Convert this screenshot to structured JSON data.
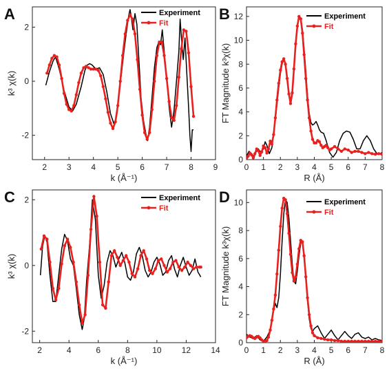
{
  "colors": {
    "experiment": "#000000",
    "fit": "#e8201e"
  },
  "chart_data": [
    {
      "id": "A",
      "letter": "A",
      "type": "line",
      "xlabel": "k (Å⁻¹)",
      "ylabel": "k³ χ(k)",
      "xlim": [
        1.5,
        9
      ],
      "ylim": [
        -2.9,
        2.75
      ],
      "xticks": [
        2,
        3,
        4,
        5,
        6,
        7,
        8,
        9
      ],
      "yticks": [
        -2,
        0,
        2
      ],
      "legend": [
        "Experiment",
        "Fit"
      ],
      "legend_position": "top-right",
      "series": [
        {
          "name": "Experiment",
          "style": "line",
          "x": [
            2.05,
            2.2,
            2.35,
            2.45,
            2.6,
            2.8,
            3.0,
            3.15,
            3.3,
            3.5,
            3.65,
            3.75,
            3.85,
            3.95,
            4.1,
            4.25,
            4.4,
            4.55,
            4.7,
            4.85,
            4.95,
            5.05,
            5.15,
            5.25,
            5.35,
            5.45,
            5.5,
            5.55,
            5.62,
            5.7,
            5.78,
            5.85,
            5.95,
            6.05,
            6.15,
            6.22,
            6.3,
            6.4,
            6.5,
            6.6,
            6.68,
            6.75,
            6.82,
            6.9,
            7.0,
            7.1,
            7.2,
            7.3,
            7.4,
            7.5,
            7.55,
            7.62,
            7.68,
            7.75,
            7.82,
            7.9,
            7.95,
            8.0,
            8.05,
            8.1
          ],
          "y": [
            -0.15,
            0.35,
            0.75,
            0.9,
            0.45,
            -0.35,
            -0.95,
            -1.1,
            -0.85,
            -0.2,
            0.4,
            0.6,
            0.65,
            0.6,
            0.45,
            0.5,
            0.25,
            -0.4,
            -1.2,
            -1.6,
            -1.3,
            -0.5,
            0.3,
            1.1,
            1.8,
            2.45,
            2.65,
            2.4,
            1.9,
            2.5,
            2.1,
            1.0,
            -0.6,
            -1.45,
            -1.95,
            -2.2,
            -1.7,
            -0.6,
            0.5,
            1.25,
            1.45,
            1.35,
            1.9,
            1.1,
            0.1,
            -0.95,
            -1.7,
            -1.1,
            0.0,
            1.1,
            2.3,
            1.4,
            0.8,
            1.6,
            0.4,
            -1.0,
            -2.0,
            -2.6,
            -1.8,
            -1.8
          ]
        },
        {
          "name": "Fit",
          "style": "line-dots",
          "x": [
            2.1,
            2.2,
            2.3,
            2.4,
            2.5,
            2.6,
            2.7,
            2.8,
            2.9,
            3.0,
            3.1,
            3.2,
            3.3,
            3.4,
            3.5,
            3.6,
            3.7,
            3.8,
            3.9,
            4.0,
            4.1,
            4.2,
            4.3,
            4.4,
            4.5,
            4.6,
            4.7,
            4.8,
            4.9,
            5.0,
            5.1,
            5.2,
            5.3,
            5.4,
            5.5,
            5.6,
            5.7,
            5.8,
            5.9,
            6.0,
            6.1,
            6.2,
            6.3,
            6.4,
            6.5,
            6.6,
            6.7,
            6.8,
            6.9,
            7.0,
            7.1,
            7.2,
            7.3,
            7.4,
            7.5,
            7.6,
            7.7,
            7.8,
            7.9,
            8.0,
            8.1
          ],
          "y": [
            0.3,
            0.6,
            0.85,
            0.95,
            0.9,
            0.6,
            0.1,
            -0.45,
            -0.85,
            -1.05,
            -1.1,
            -0.9,
            -0.5,
            -0.05,
            0.3,
            0.5,
            0.55,
            0.5,
            0.45,
            0.45,
            0.45,
            0.4,
            0.2,
            -0.2,
            -0.65,
            -1.15,
            -1.55,
            -1.75,
            -1.5,
            -0.9,
            0.0,
            0.95,
            1.75,
            2.25,
            2.45,
            2.3,
            1.75,
            0.8,
            -0.3,
            -1.25,
            -1.9,
            -2.15,
            -1.9,
            -1.05,
            0.0,
            0.95,
            1.45,
            1.45,
            0.95,
            0.1,
            -0.75,
            -1.35,
            -1.45,
            -0.9,
            0.15,
            1.2,
            1.9,
            1.85,
            1.05,
            -0.2,
            -1.3
          ]
        }
      ]
    },
    {
      "id": "B",
      "letter": "B",
      "type": "line",
      "xlabel": "R (Å)",
      "ylabel": "FT Magnitude k³χ(k)",
      "xlim": [
        0,
        8
      ],
      "ylim": [
        0,
        12.8
      ],
      "xticks": [
        0,
        1,
        2,
        3,
        4,
        5,
        6,
        7,
        8
      ],
      "yticks": [
        0,
        2,
        4,
        6,
        8,
        10,
        12
      ],
      "legend": [
        "Experiment",
        "Fit"
      ],
      "legend_position": "top-right",
      "series": [
        {
          "name": "Experiment",
          "style": "line",
          "x": [
            0.0,
            0.15,
            0.3,
            0.45,
            0.55,
            0.7,
            0.85,
            1.0,
            1.1,
            1.2,
            1.35,
            1.5,
            1.6,
            1.7,
            1.8,
            1.9,
            2.0,
            2.1,
            2.2,
            2.3,
            2.4,
            2.5,
            2.6,
            2.7,
            2.8,
            2.9,
            3.0,
            3.1,
            3.2,
            3.3,
            3.4,
            3.5,
            3.6,
            3.7,
            3.8,
            3.9,
            4.0,
            4.1,
            4.2,
            4.3,
            4.4,
            4.55,
            4.7,
            4.9,
            5.1,
            5.3,
            5.5,
            5.7,
            5.9,
            6.1,
            6.3,
            6.5,
            6.7,
            6.9,
            7.1,
            7.3,
            7.5,
            7.7,
            7.9,
            8.0
          ],
          "y": [
            0.3,
            0.7,
            0.5,
            0.2,
            0.6,
            0.9,
            0.6,
            0.9,
            1.5,
            1.2,
            0.5,
            1.0,
            2.2,
            3.4,
            4.6,
            6.0,
            7.2,
            8.0,
            8.4,
            8.1,
            7.0,
            5.6,
            4.9,
            5.8,
            7.6,
            9.8,
            11.2,
            12.0,
            11.8,
            10.9,
            9.3,
            7.4,
            5.4,
            3.9,
            3.1,
            2.9,
            3.0,
            3.2,
            2.9,
            2.5,
            2.3,
            2.2,
            1.6,
            0.6,
            0.2,
            0.6,
            1.6,
            2.2,
            2.4,
            2.3,
            1.7,
            0.9,
            0.9,
            1.6,
            2.0,
            1.6,
            0.9,
            0.5,
            0.5,
            0.6
          ]
        },
        {
          "name": "Fit",
          "style": "line-dots",
          "x": [
            0.0,
            0.1,
            0.2,
            0.3,
            0.4,
            0.5,
            0.6,
            0.7,
            0.8,
            0.9,
            1.0,
            1.1,
            1.2,
            1.3,
            1.4,
            1.5,
            1.6,
            1.7,
            1.8,
            1.9,
            2.0,
            2.1,
            2.2,
            2.3,
            2.4,
            2.5,
            2.6,
            2.7,
            2.8,
            2.9,
            3.0,
            3.1,
            3.2,
            3.3,
            3.4,
            3.5,
            3.6,
            3.7,
            3.8,
            3.9,
            4.0,
            4.1,
            4.2,
            4.3,
            4.4,
            4.5,
            4.6,
            4.7,
            4.8,
            4.9,
            5.0,
            5.2,
            5.4,
            5.6,
            5.8,
            6.0,
            6.2,
            6.4,
            6.6,
            6.8,
            7.0,
            7.2,
            7.4,
            7.6,
            7.8,
            8.0
          ],
          "y": [
            0.0,
            0.3,
            0.55,
            0.4,
            0.15,
            0.5,
            0.9,
            0.75,
            0.35,
            0.65,
            1.15,
            1.0,
            0.55,
            0.9,
            1.55,
            1.3,
            2.1,
            3.5,
            5.0,
            6.4,
            7.5,
            8.2,
            8.45,
            8.0,
            6.8,
            5.5,
            4.7,
            5.6,
            7.6,
            9.7,
            11.2,
            12.0,
            11.8,
            10.6,
            8.8,
            6.8,
            5.0,
            3.5,
            2.4,
            1.7,
            1.4,
            1.4,
            1.6,
            1.5,
            1.2,
            1.0,
            1.1,
            1.2,
            1.0,
            0.8,
            0.9,
            1.1,
            0.9,
            0.7,
            0.9,
            0.8,
            0.6,
            0.7,
            0.7,
            0.6,
            0.5,
            0.6,
            0.5,
            0.45,
            0.5,
            0.45
          ]
        }
      ]
    },
    {
      "id": "C",
      "letter": "C",
      "type": "line",
      "xlabel": "k (Å⁻¹)",
      "ylabel": "k³ χ(k)",
      "xlim": [
        1.5,
        14
      ],
      "ylim": [
        -2.35,
        2.3
      ],
      "xticks": [
        2,
        4,
        6,
        8,
        10,
        12,
        14
      ],
      "yticks": [
        -2,
        0,
        2
      ],
      "legend": [
        "Experiment",
        "Fit"
      ],
      "legend_position": "top-right",
      "series": [
        {
          "name": "Experiment",
          "style": "line",
          "x": [
            2.05,
            2.2,
            2.35,
            2.5,
            2.7,
            2.9,
            3.1,
            3.3,
            3.5,
            3.7,
            3.9,
            4.1,
            4.3,
            4.5,
            4.7,
            4.9,
            5.05,
            5.2,
            5.4,
            5.6,
            5.8,
            6.0,
            6.2,
            6.4,
            6.6,
            6.8,
            7.0,
            7.2,
            7.4,
            7.6,
            7.8,
            8.0,
            8.2,
            8.4,
            8.6,
            8.8,
            9.0,
            9.2,
            9.4,
            9.6,
            9.8,
            10.0,
            10.2,
            10.4,
            10.6,
            10.8,
            11.0,
            11.2,
            11.4,
            11.6,
            11.8,
            12.0,
            12.2,
            12.4,
            12.6,
            12.8,
            13.0
          ],
          "y": [
            -0.3,
            0.6,
            0.9,
            0.7,
            -0.3,
            -1.1,
            -1.1,
            -0.3,
            0.5,
            0.95,
            0.75,
            0.2,
            0.0,
            -0.7,
            -1.5,
            -1.95,
            -1.6,
            -0.5,
            0.6,
            2.0,
            1.4,
            -0.3,
            -1.0,
            -0.6,
            0.1,
            0.45,
            0.3,
            -0.05,
            0.2,
            0.4,
            0.1,
            -0.35,
            -0.45,
            -0.2,
            0.35,
            0.55,
            0.3,
            -0.15,
            -0.35,
            -0.2,
            0.1,
            0.25,
            0.05,
            -0.3,
            -0.2,
            0.15,
            0.3,
            -0.1,
            -0.35,
            0.0,
            0.25,
            -0.05,
            -0.3,
            -0.15,
            0.2,
            -0.2,
            -0.35
          ]
        },
        {
          "name": "Fit",
          "style": "line-dots",
          "x": [
            2.1,
            2.3,
            2.5,
            2.7,
            2.9,
            3.1,
            3.3,
            3.5,
            3.7,
            3.9,
            4.1,
            4.3,
            4.5,
            4.7,
            4.9,
            5.1,
            5.3,
            5.5,
            5.7,
            5.9,
            6.1,
            6.3,
            6.5,
            6.7,
            6.9,
            7.1,
            7.3,
            7.5,
            7.7,
            7.9,
            8.1,
            8.3,
            8.5,
            8.7,
            8.9,
            9.1,
            9.3,
            9.5,
            9.7,
            9.9,
            10.1,
            10.3,
            10.5,
            10.7,
            10.9,
            11.1,
            11.3,
            11.5,
            11.7,
            11.9,
            12.1,
            12.3,
            12.5,
            12.7,
            12.9,
            13.0
          ],
          "y": [
            0.5,
            0.9,
            0.8,
            0.1,
            -0.7,
            -1.05,
            -0.7,
            0.05,
            0.6,
            0.8,
            0.55,
            0.1,
            -0.5,
            -1.2,
            -1.75,
            -1.5,
            -0.3,
            1.1,
            2.1,
            1.5,
            0.1,
            -1.2,
            -1.3,
            -0.5,
            0.3,
            0.45,
            0.25,
            0.0,
            0.15,
            0.3,
            0.1,
            -0.25,
            -0.35,
            -0.1,
            0.3,
            0.45,
            0.2,
            -0.15,
            -0.25,
            -0.1,
            0.15,
            0.2,
            0.0,
            -0.2,
            -0.1,
            0.1,
            0.15,
            -0.05,
            -0.15,
            -0.05,
            0.1,
            0.0,
            -0.1,
            -0.05,
            -0.05,
            -0.05
          ]
        }
      ]
    },
    {
      "id": "D",
      "letter": "D",
      "type": "line",
      "xlabel": "R (Å)",
      "ylabel": "FT Magnitude k³χ(k)",
      "xlim": [
        0,
        8
      ],
      "ylim": [
        0,
        10.9
      ],
      "xticks": [
        0,
        1,
        2,
        3,
        4,
        5,
        6,
        7,
        8
      ],
      "yticks": [
        0,
        2,
        4,
        6,
        8,
        10
      ],
      "legend": [
        "Experiment",
        "Fit"
      ],
      "legend_position": "top-right",
      "series": [
        {
          "name": "Experiment",
          "style": "line",
          "x": [
            0.0,
            0.2,
            0.4,
            0.6,
            0.8,
            1.0,
            1.2,
            1.4,
            1.5,
            1.6,
            1.7,
            1.8,
            1.9,
            2.0,
            2.1,
            2.2,
            2.3,
            2.4,
            2.5,
            2.6,
            2.7,
            2.8,
            2.9,
            3.0,
            3.1,
            3.2,
            3.3,
            3.4,
            3.5,
            3.6,
            3.7,
            3.8,
            3.9,
            4.0,
            4.2,
            4.4,
            4.6,
            4.8,
            5.0,
            5.2,
            5.4,
            5.6,
            5.8,
            6.0,
            6.2,
            6.4,
            6.6,
            6.8,
            7.0,
            7.2,
            7.4,
            7.6,
            7.8,
            8.0
          ],
          "y": [
            0.6,
            0.4,
            0.3,
            0.5,
            0.2,
            0.1,
            0.4,
            0.9,
            1.6,
            2.3,
            2.8,
            2.5,
            3.2,
            4.9,
            7.2,
            9.2,
            10.2,
            10.0,
            8.9,
            7.3,
            5.6,
            4.4,
            4.2,
            5.1,
            6.2,
            7.1,
            7.2,
            6.2,
            4.6,
            3.0,
            1.7,
            1.0,
            0.8,
            1.0,
            1.2,
            0.7,
            0.3,
            0.6,
            0.9,
            0.5,
            0.2,
            0.5,
            0.8,
            0.5,
            0.3,
            0.6,
            0.7,
            0.4,
            0.3,
            0.4,
            0.2,
            0.3,
            0.2,
            0.15
          ]
        },
        {
          "name": "Fit",
          "style": "line-dots",
          "x": [
            0.0,
            0.1,
            0.2,
            0.3,
            0.4,
            0.5,
            0.6,
            0.7,
            0.8,
            0.9,
            1.0,
            1.1,
            1.2,
            1.3,
            1.4,
            1.5,
            1.6,
            1.7,
            1.8,
            1.9,
            2.0,
            2.1,
            2.2,
            2.3,
            2.4,
            2.5,
            2.6,
            2.7,
            2.8,
            2.9,
            3.0,
            3.1,
            3.2,
            3.3,
            3.4,
            3.5,
            3.6,
            3.7,
            3.8,
            3.9,
            4.0,
            4.2,
            4.4,
            4.6,
            4.8,
            5.0,
            5.2,
            5.4,
            5.6,
            5.8,
            6.0,
            6.2,
            6.4,
            6.6,
            6.8,
            7.0,
            7.2,
            7.4,
            7.6,
            7.8,
            8.0
          ],
          "y": [
            0.35,
            0.45,
            0.5,
            0.45,
            0.35,
            0.3,
            0.4,
            0.45,
            0.35,
            0.2,
            0.1,
            0.1,
            0.15,
            0.4,
            0.9,
            1.6,
            2.4,
            3.4,
            4.9,
            6.6,
            8.3,
            9.6,
            10.3,
            10.2,
            9.2,
            7.8,
            6.3,
            5.0,
            4.4,
            4.7,
            5.6,
            6.7,
            7.3,
            7.2,
            6.2,
            4.7,
            3.2,
            2.0,
            1.2,
            0.7,
            0.5,
            0.35,
            0.3,
            0.25,
            0.2,
            0.2,
            0.15,
            0.15,
            0.1,
            0.1,
            0.1,
            0.1,
            0.1,
            0.1,
            0.1,
            0.1,
            0.1,
            0.1,
            0.1,
            0.1,
            0.1
          ]
        }
      ]
    }
  ]
}
